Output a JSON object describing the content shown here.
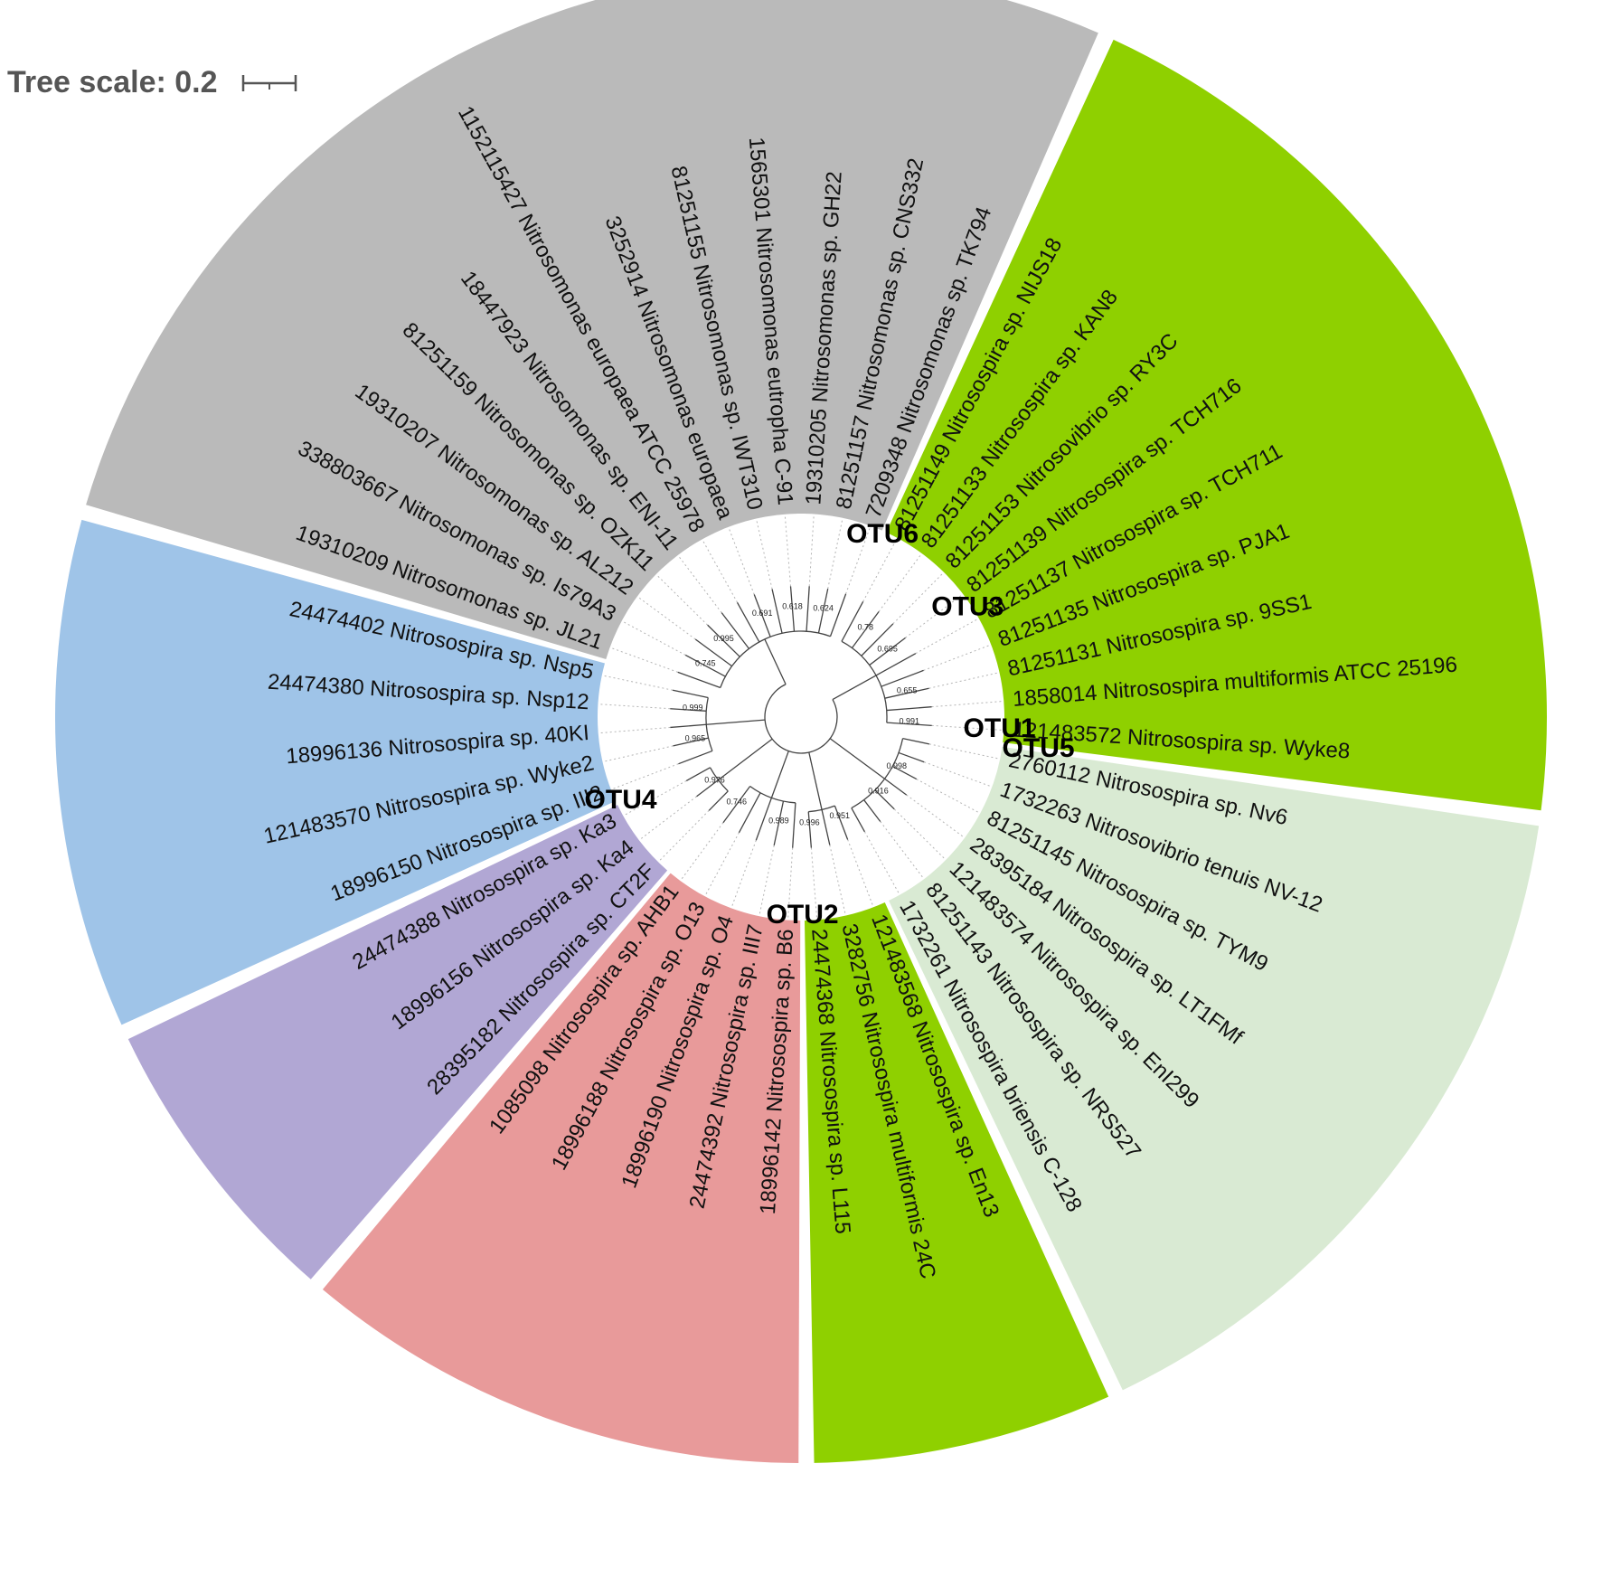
{
  "tree_scale": {
    "label": "Tree scale: 0.2",
    "value": 0.2
  },
  "colors": {
    "grey": "#bababa",
    "green": "#8fd000",
    "blue": "#9fc4e8",
    "purple": "#b1a7d4",
    "pink": "#e89a9a",
    "lightgreen": "#d9ead3"
  },
  "leaves": [
    {
      "label": "7209348 Nitrosomonas sp. TK794",
      "clade": "grey"
    },
    {
      "label": "81251157 Nitrosomonas sp. CNS332",
      "clade": "grey"
    },
    {
      "label": "19310205 Nitrosomonas sp. GH22",
      "clade": "grey"
    },
    {
      "label": "1565301 Nitrosomonas eutropha C-91",
      "clade": "grey"
    },
    {
      "label": "81251155 Nitrosomonas sp. IWT310",
      "clade": "grey"
    },
    {
      "label": "3252914 Nitrosomonas europaea",
      "clade": "grey"
    },
    {
      "label": "1152115427 Nitrosomonas europaea ATCC 25978",
      "clade": "grey"
    },
    {
      "label": "18447923 Nitrosomonas sp. ENI-11",
      "clade": "grey"
    },
    {
      "label": "81251159 Nitrosomonas sp. OZK11",
      "clade": "grey"
    },
    {
      "label": "19310207 Nitrosomonas sp. AL212",
      "clade": "grey"
    },
    {
      "label": "338803667 Nitrosomonas sp. Is79A3",
      "clade": "grey"
    },
    {
      "label": "19310209 Nitrosomonas sp. JL21",
      "clade": "grey"
    },
    {
      "label": "24474402 Nitrosospira sp. Nsp5",
      "clade": "blue"
    },
    {
      "label": "24474380 Nitrosospira sp. Nsp12",
      "clade": "blue"
    },
    {
      "label": "18996136 Nitrosospira sp. 40KI",
      "clade": "blue"
    },
    {
      "label": "121483570 Nitrosospira sp. Wyke2",
      "clade": "blue"
    },
    {
      "label": "18996150 Nitrosospira sp. III2",
      "clade": "blue"
    },
    {
      "label": "24474388 Nitrosospira sp. Ka3",
      "clade": "purple"
    },
    {
      "label": "18996156 Nitrosospira sp. Ka4",
      "clade": "purple"
    },
    {
      "label": "28395182 Nitrosospira sp. CT2F",
      "clade": "purple"
    },
    {
      "label": "1085098 Nitrosospira sp. AHB1",
      "clade": "pink"
    },
    {
      "label": "18996188 Nitrosospira sp. O13",
      "clade": "pink"
    },
    {
      "label": "18996190 Nitrosospira sp. O4",
      "clade": "pink"
    },
    {
      "label": "24474392 Nitrosospira sp. III7",
      "clade": "pink"
    },
    {
      "label": "18996142 Nitrosospira sp. B6",
      "clade": "pink"
    },
    {
      "label": "24474368 Nitrosospira sp. L115",
      "clade": "green"
    },
    {
      "label": "3282756 Nitrosospira multiformis 24C",
      "clade": "green"
    },
    {
      "label": "121483568 Nitrosospira sp. En13",
      "clade": "green"
    },
    {
      "label": "1732261 Nitrosospira briensis C-128",
      "clade": "lightgreen"
    },
    {
      "label": "81251143 Nitrosospira sp. NRS527",
      "clade": "lightgreen"
    },
    {
      "label": "121483574 Nitrosospira sp. EnI299",
      "clade": "lightgreen"
    },
    {
      "label": "28395184 Nitrosospira sp. LT1FMf",
      "clade": "lightgreen"
    },
    {
      "label": "81251145 Nitrosospira sp. TYM9",
      "clade": "lightgreen"
    },
    {
      "label": "1732263 Nitrosovibrio tenuis NV-12",
      "clade": "lightgreen"
    },
    {
      "label": "2760112 Nitrosospira sp. Nv6",
      "clade": "lightgreen"
    },
    {
      "label": "121483572 Nitrosospira sp. Wyke8",
      "clade": "green"
    },
    {
      "label": "1858014 Nitrosospira multiformis ATCC 25196",
      "clade": "green"
    },
    {
      "label": "81251131 Nitrosospira sp. 9SS1",
      "clade": "green"
    },
    {
      "label": "81251135 Nitrosospira sp. PJA1",
      "clade": "green"
    },
    {
      "label": "81251137 Nitrosospira sp. TCH711",
      "clade": "green"
    },
    {
      "label": "81251139 Nitrosospira sp. TCH716",
      "clade": "green"
    },
    {
      "label": "81251153 Nitrosovibrio sp. RY3C",
      "clade": "green"
    },
    {
      "label": "81251133 Nitrosospira sp. KAN8",
      "clade": "green"
    },
    {
      "label": "81251149 Nitrosospira sp. NIJS18",
      "clade": "green"
    }
  ],
  "otus": [
    {
      "label": "OTU6"
    },
    {
      "label": "OTU3"
    },
    {
      "label": "OTU1"
    },
    {
      "label": "OTU5"
    },
    {
      "label": "OTU2"
    },
    {
      "label": "OTU4"
    }
  ],
  "support_values": [
    "0.624",
    "0.618",
    "0.691",
    "0.995",
    "0.745",
    "0.999",
    "0.965",
    "0.976",
    "0.746",
    "0.989",
    "0.996",
    "0.951",
    "0.916",
    "0.998",
    "0.991",
    "0.655",
    "0.695",
    "0.78"
  ]
}
